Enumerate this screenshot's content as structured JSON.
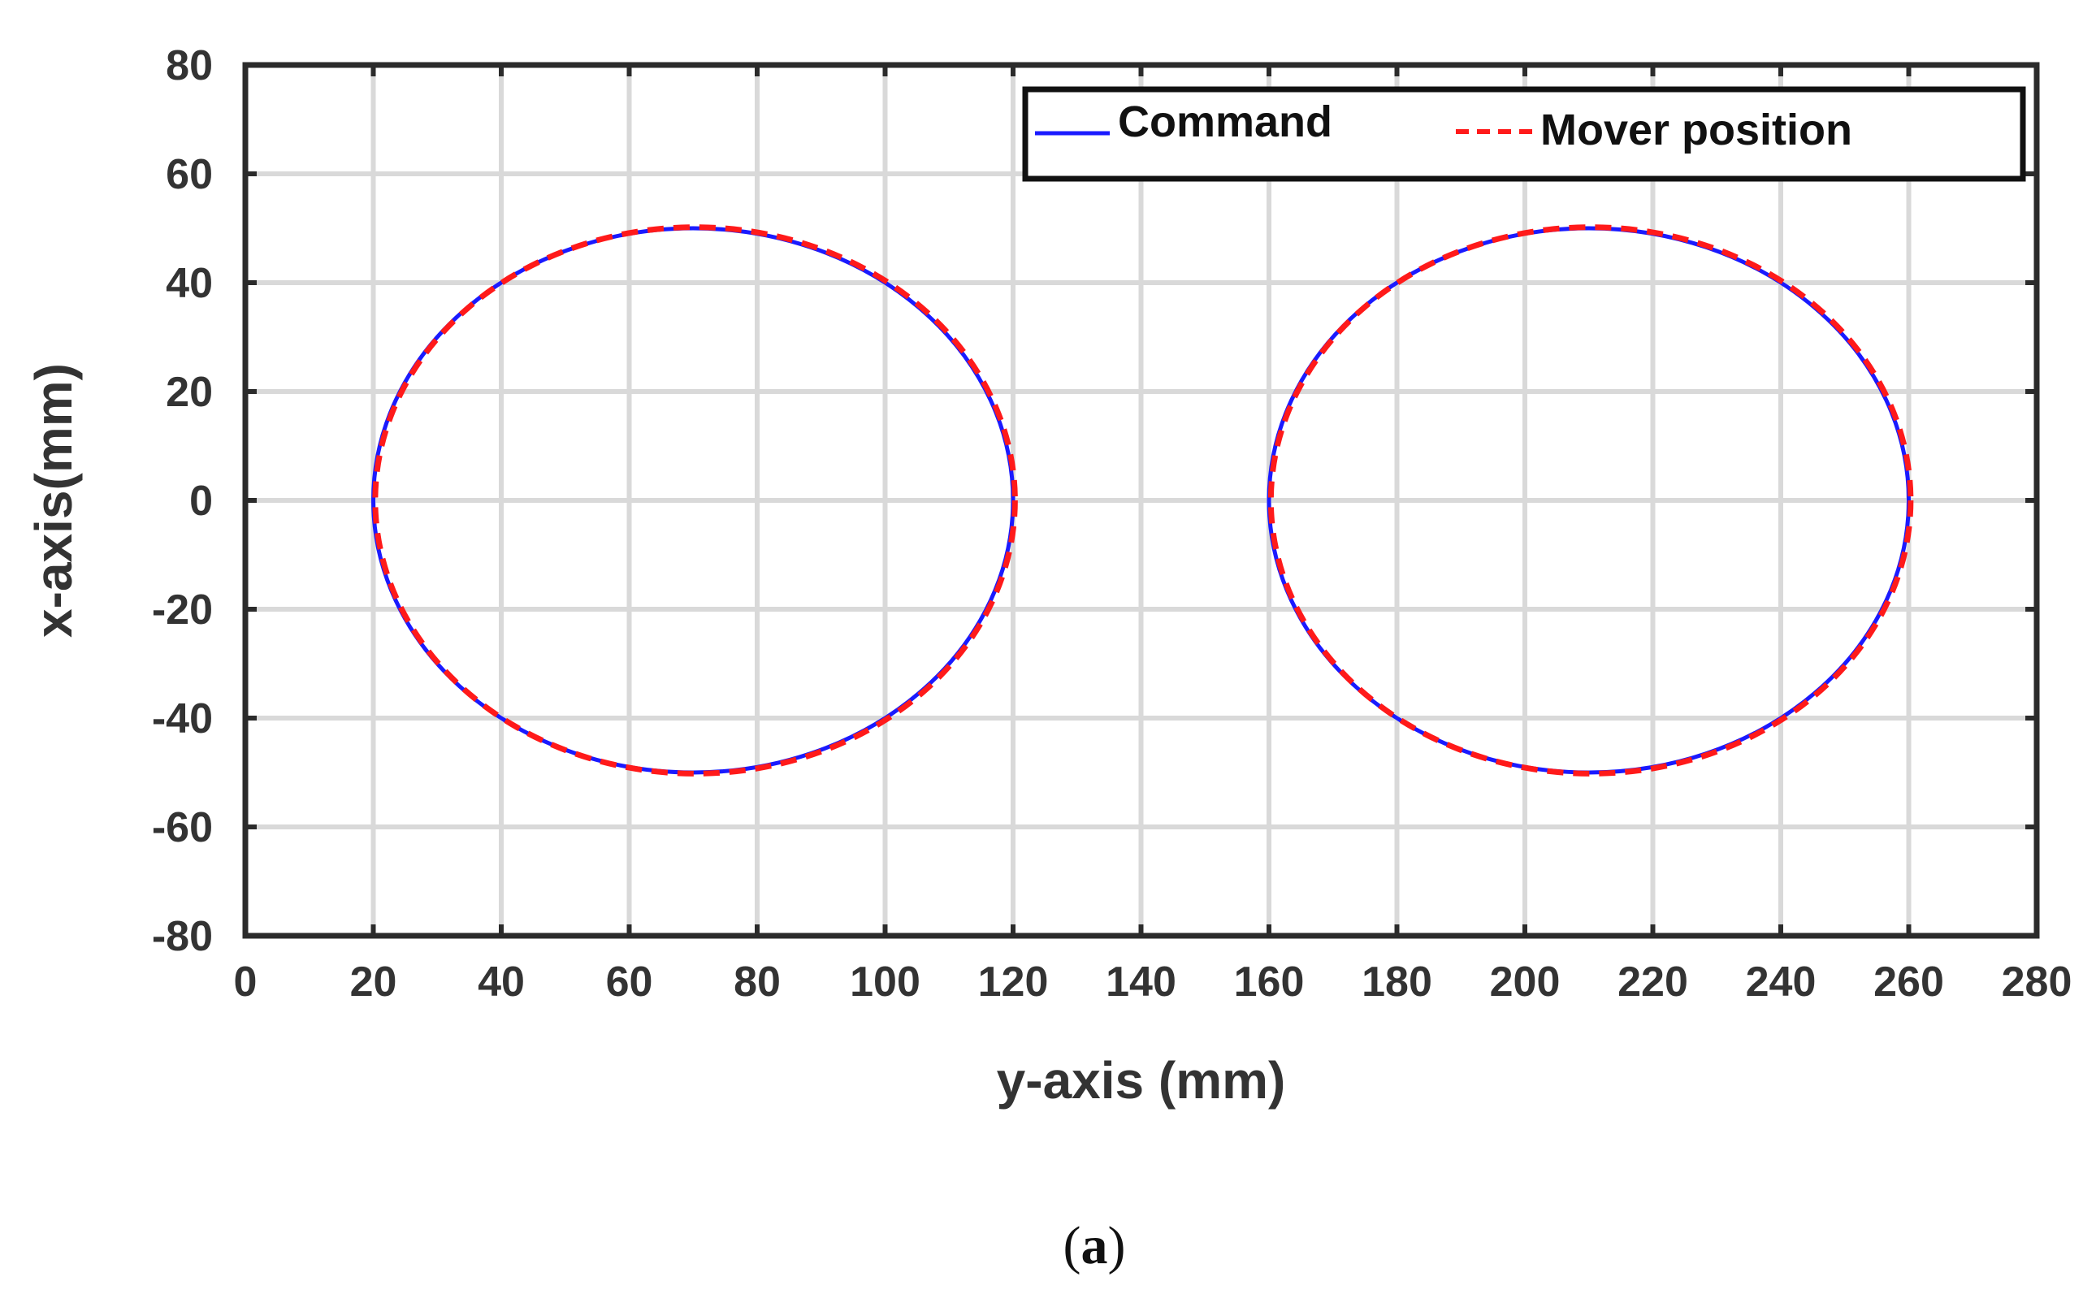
{
  "chart_data": {
    "type": "line",
    "xlabel": "y-axis (mm)",
    "ylabel": "x-axis(mm)",
    "xlim": [
      0,
      280
    ],
    "ylim": [
      -80,
      80
    ],
    "xticks": [
      0,
      20,
      40,
      60,
      80,
      100,
      120,
      140,
      160,
      180,
      200,
      220,
      240,
      260,
      280
    ],
    "yticks": [
      -80,
      -60,
      -40,
      -20,
      0,
      20,
      40,
      60,
      80
    ],
    "grid": true,
    "legend_position": "top-right",
    "series": [
      {
        "name": "Command",
        "color": "#1a1aff",
        "style": "solid",
        "shapes": [
          {
            "shape": "ellipse",
            "center_x": 70,
            "center_y": 0,
            "radius_x": 50,
            "radius_y": 50
          },
          {
            "shape": "ellipse",
            "center_x": 210,
            "center_y": 0,
            "radius_x": 50,
            "radius_y": 50
          }
        ]
      },
      {
        "name": "Mover position",
        "color": "#ff1a1a",
        "style": "dashed",
        "shapes": [
          {
            "shape": "ellipse",
            "center_x": 70.3,
            "center_y": 0,
            "radius_x": 50,
            "radius_y": 50.2
          },
          {
            "shape": "ellipse",
            "center_x": 210.3,
            "center_y": 0,
            "radius_x": 50,
            "radius_y": 50.2
          }
        ]
      }
    ]
  },
  "caption": {
    "open": "(",
    "letter": "a",
    "close": ")"
  }
}
